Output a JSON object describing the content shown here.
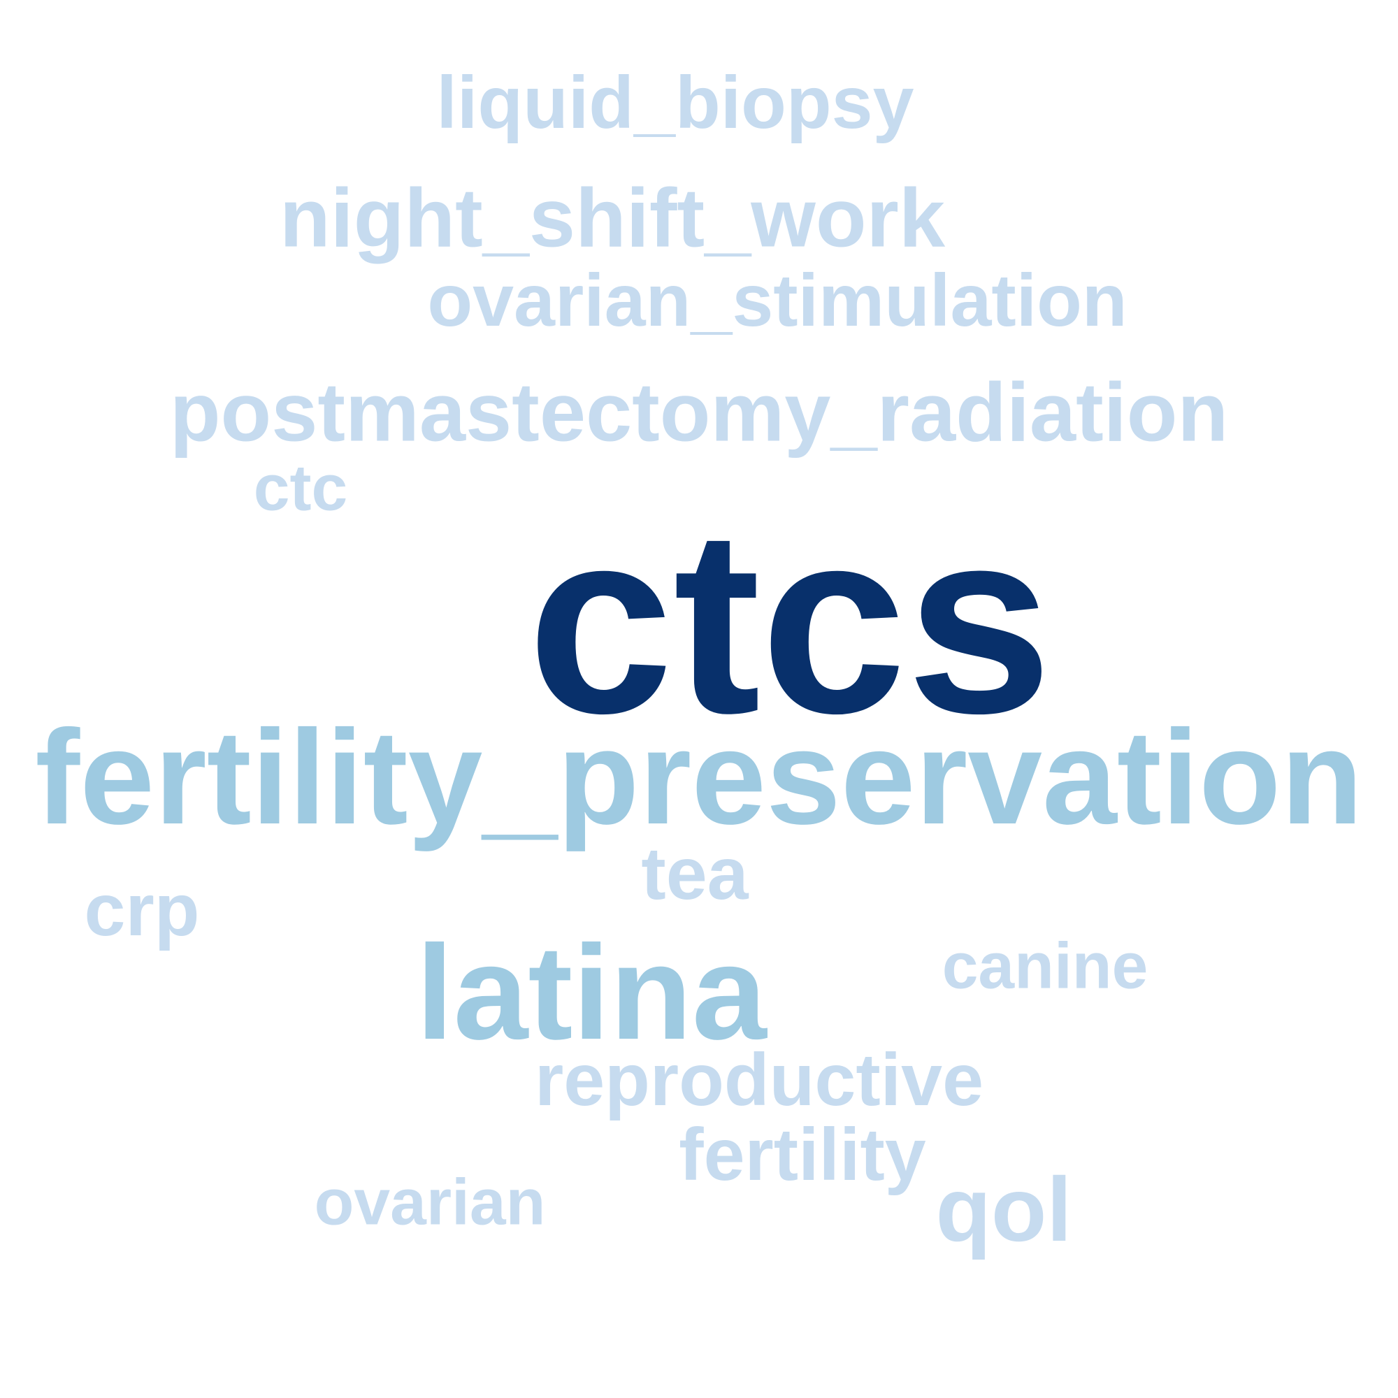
{
  "words": [
    {
      "text": "ctcs",
      "color": "#08306b"
    },
    {
      "text": "fertility_preservation",
      "color": "#9ecae1"
    },
    {
      "text": "latina",
      "color": "#9ecae1"
    },
    {
      "text": "postmastectomy_radiation",
      "color": "#c6dbef"
    },
    {
      "text": "night_shift_work",
      "color": "#c6dbef"
    },
    {
      "text": "ovarian_stimulation",
      "color": "#c6dbef"
    },
    {
      "text": "liquid_biopsy",
      "color": "#c6dbef"
    },
    {
      "text": "reproductive",
      "color": "#c6dbef"
    },
    {
      "text": "qol",
      "color": "#c6dbef"
    },
    {
      "text": "crp",
      "color": "#c6dbef"
    },
    {
      "text": "tea",
      "color": "#c6dbef"
    },
    {
      "text": "canine",
      "color": "#c6dbef"
    },
    {
      "text": "fertility",
      "color": "#c6dbef"
    },
    {
      "text": "ovarian",
      "color": "#c6dbef"
    },
    {
      "text": "ctc",
      "color": "#c6dbef"
    }
  ]
}
